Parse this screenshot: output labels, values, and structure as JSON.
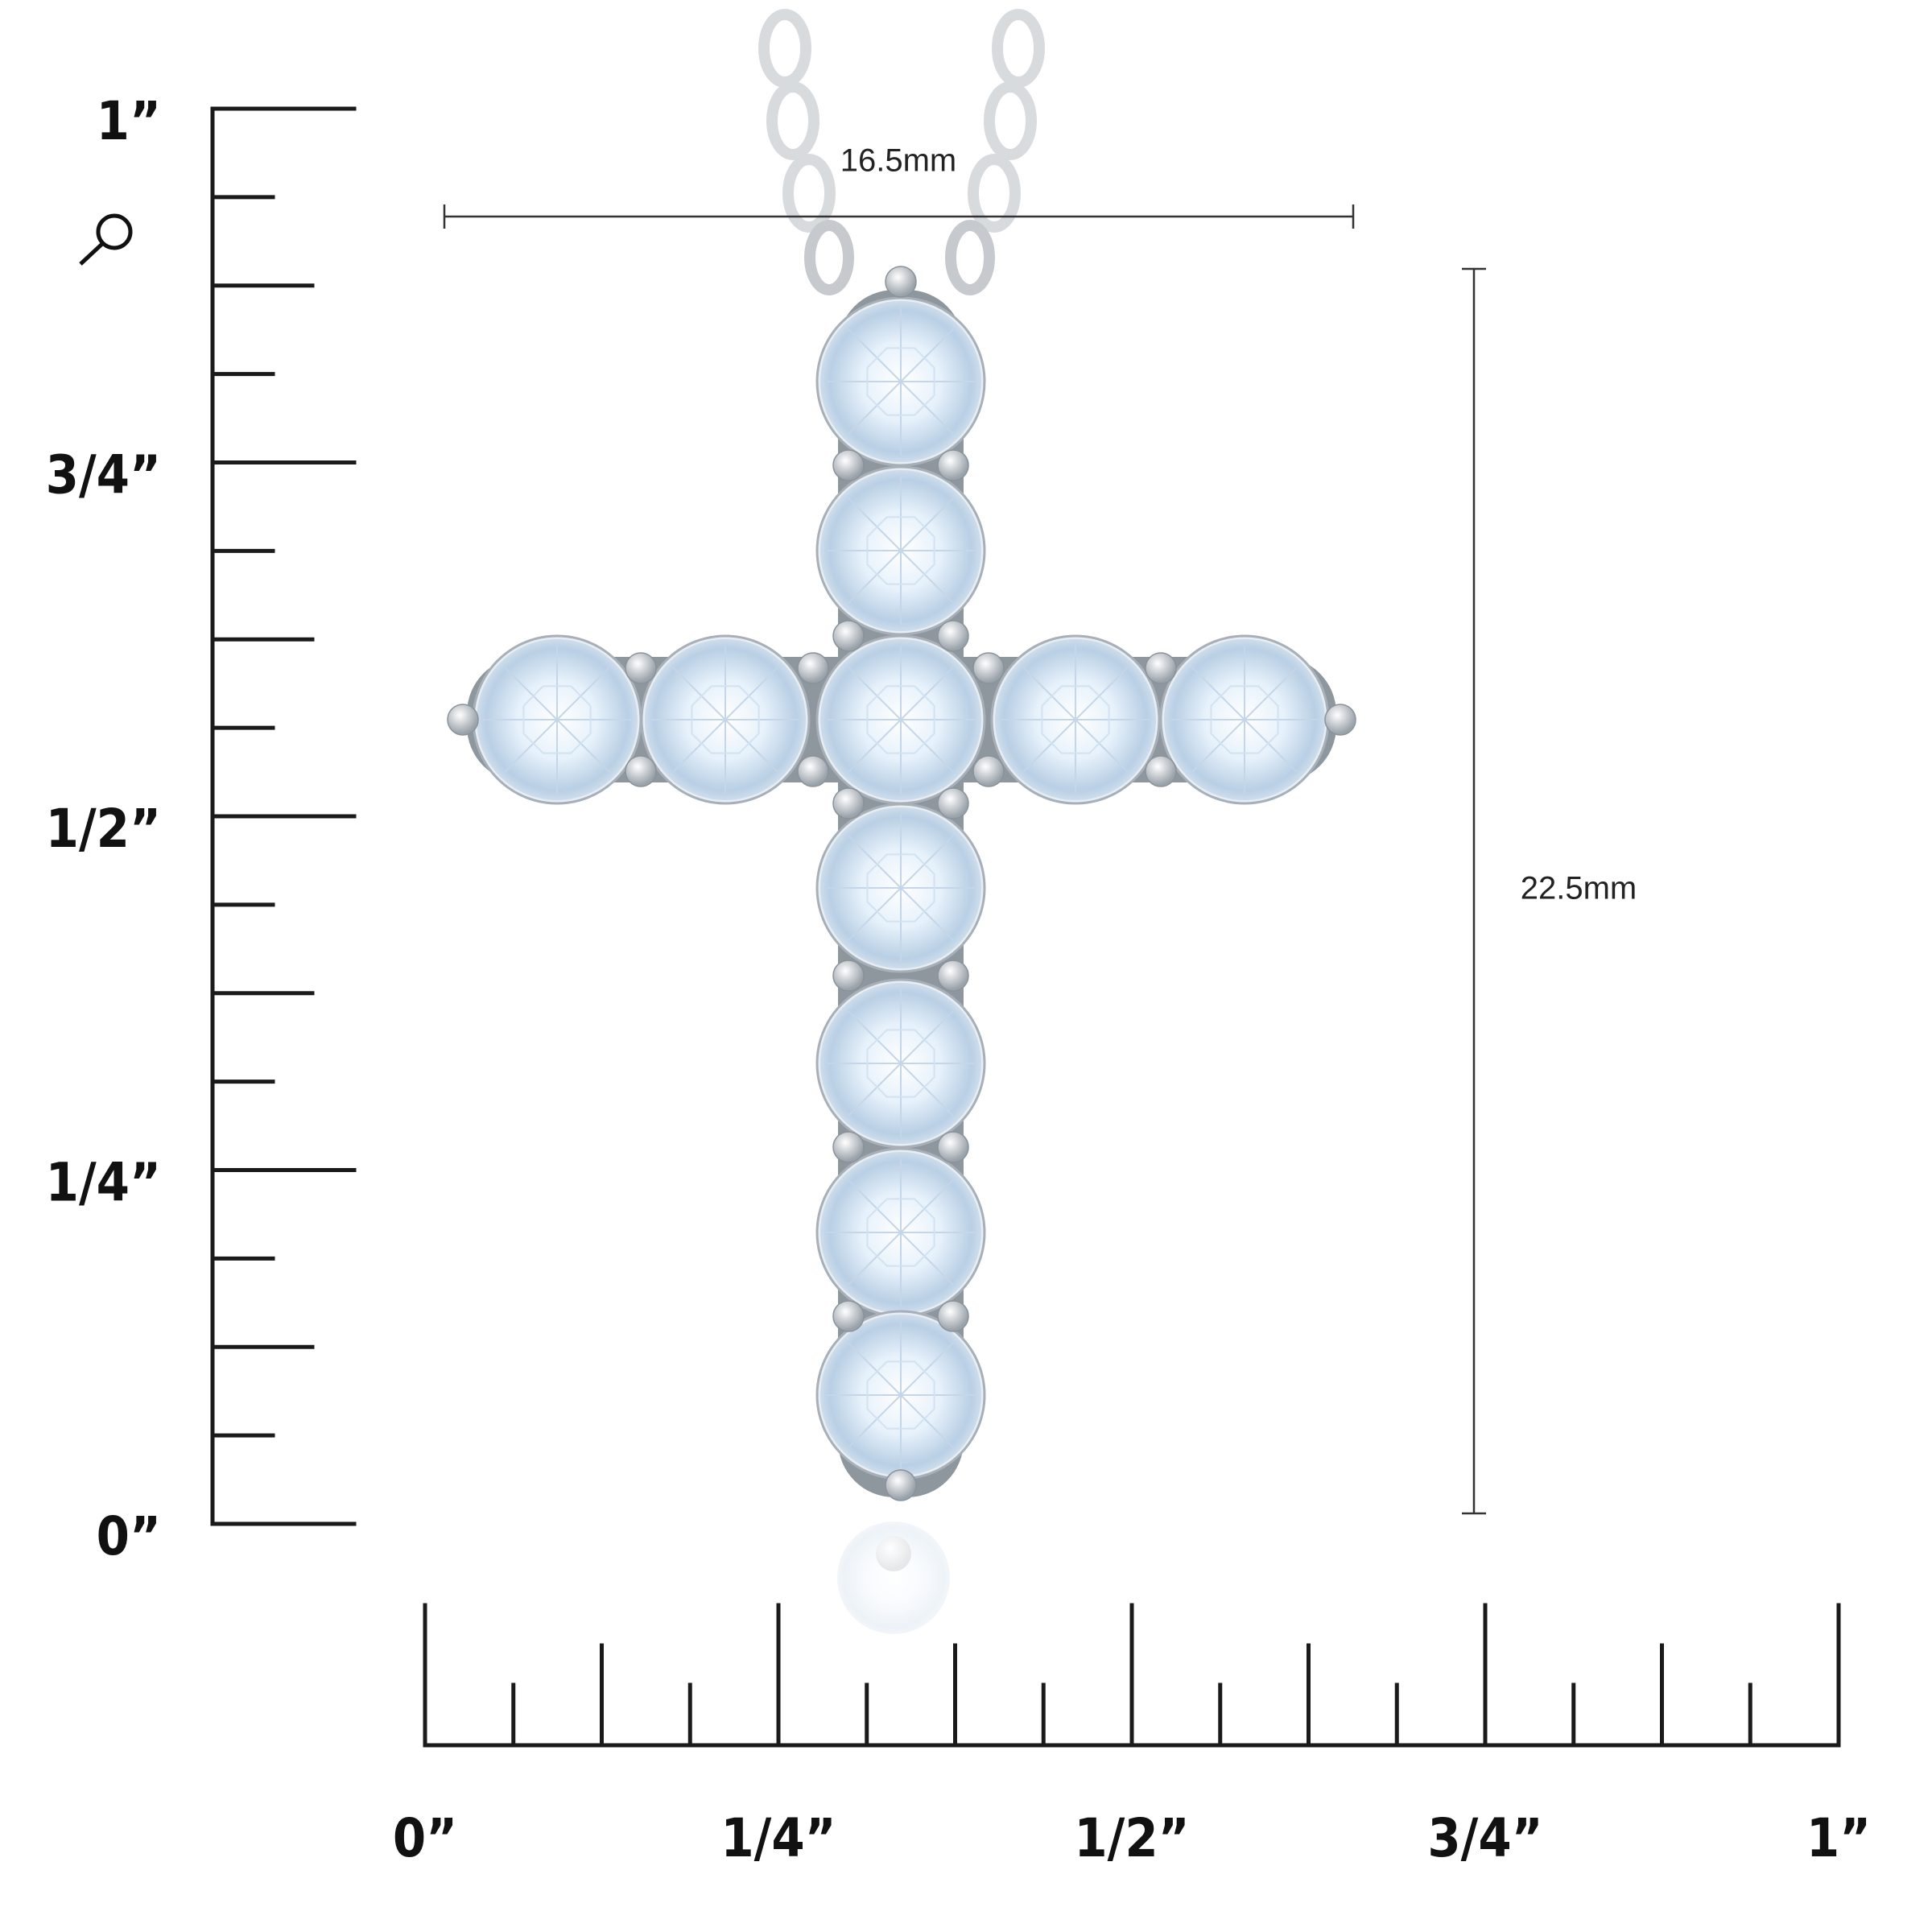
{
  "dimensions": {
    "width": "16.5mm",
    "height": "22.5mm"
  },
  "vertical_ruler": {
    "labels": [
      "1”",
      "3/4”",
      "1/2”",
      "1/4”",
      "0”"
    ]
  },
  "horizontal_ruler": {
    "labels": [
      "0”",
      "1/4”",
      "1/2”",
      "3/4”",
      "1”"
    ]
  }
}
